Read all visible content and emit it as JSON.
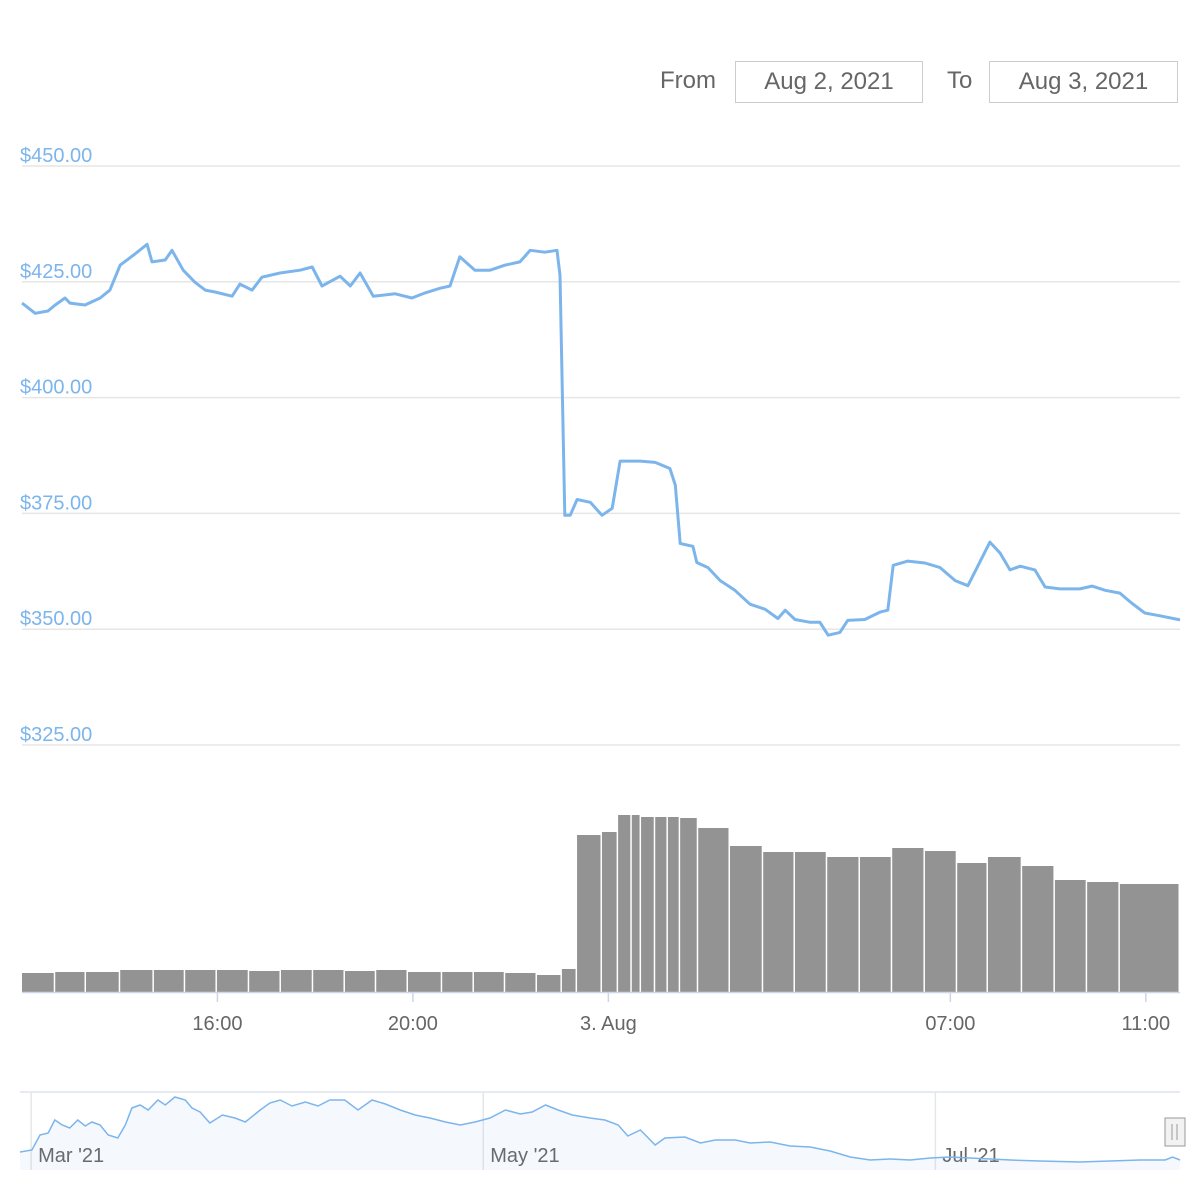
{
  "range_selector": {
    "from_label": "From",
    "from_value": "Aug 2, 2021",
    "to_label": "To",
    "to_value": "Aug 3, 2021"
  },
  "chart_data": [
    {
      "type": "line",
      "color": "#7cb5ec",
      "xlim": [
        12,
        35.7
      ],
      "ylim": [
        325,
        450
      ],
      "yticks": [
        {
          "value": 325,
          "label": "$325.00"
        },
        {
          "value": 350,
          "label": "$350.00"
        },
        {
          "value": 375,
          "label": "$375.00"
        },
        {
          "value": 400,
          "label": "$400.00"
        },
        {
          "value": 425,
          "label": "$425.00"
        },
        {
          "value": 450,
          "label": "$450.00"
        }
      ],
      "grid": true,
      "x": [
        12.0,
        12.27,
        12.53,
        12.68,
        12.88,
        12.98,
        13.29,
        13.6,
        13.8,
        14.01,
        14.31,
        14.56,
        14.66,
        14.93,
        15.07,
        15.3,
        15.54,
        15.75,
        15.95,
        16.3,
        16.46,
        16.71,
        16.91,
        17.28,
        17.69,
        17.94,
        18.14,
        18.51,
        18.72,
        18.92,
        19.19,
        19.64,
        19.98,
        20.25,
        20.55,
        20.76,
        20.96,
        21.27,
        21.58,
        21.89,
        22.19,
        22.4,
        22.7,
        22.95,
        23.01,
        23.11,
        23.22,
        23.36,
        23.63,
        23.87,
        24.08,
        24.24,
        24.65,
        24.96,
        25.26,
        25.37,
        25.47,
        25.73,
        25.81,
        26.04,
        26.29,
        26.59,
        26.9,
        27.21,
        27.47,
        27.62,
        27.82,
        28.13,
        28.33,
        28.5,
        28.74,
        28.9,
        29.25,
        29.56,
        29.72,
        29.83,
        30.13,
        30.48,
        30.79,
        31.1,
        31.36,
        31.57,
        31.81,
        32.02,
        32.22,
        32.43,
        32.73,
        32.94,
        33.24,
        33.65,
        33.9,
        34.17,
        34.47,
        34.68,
        34.98,
        35.29,
        35.7
      ],
      "values": [
        420.4,
        418.2,
        418.7,
        420,
        421.5,
        420.4,
        420,
        421.5,
        423.2,
        428.6,
        431,
        433.1,
        429.3,
        429.7,
        431.8,
        427.5,
        424.9,
        423.2,
        422.8,
        421.9,
        424.5,
        423.2,
        426,
        426.9,
        427.5,
        428.2,
        424.1,
        426.2,
        424.1,
        426.9,
        421.9,
        422.4,
        421.5,
        422.6,
        423.6,
        424.1,
        430.4,
        427.5,
        427.5,
        428.6,
        429.3,
        431.8,
        431.4,
        431.8,
        426.4,
        374.6,
        374.6,
        378,
        377.4,
        374.6,
        376.1,
        386.3,
        386.3,
        386,
        384.7,
        381.1,
        368.5,
        367.9,
        364.4,
        363.3,
        360.5,
        358.4,
        355.4,
        354.3,
        352.3,
        354.1,
        352.1,
        351.5,
        351.5,
        348.7,
        349.3,
        351.9,
        352.1,
        353.7,
        354.1,
        363.8,
        364.7,
        364.3,
        363.3,
        360.5,
        359.4,
        363.8,
        368.8,
        366.4,
        362.8,
        363.6,
        362.8,
        359.1,
        358.7,
        358.7,
        359.3,
        358.4,
        357.8,
        355.9,
        353.5,
        352.9,
        352
      ]
    },
    {
      "type": "column",
      "color": "#939393",
      "xlim": [
        12,
        35.7
      ],
      "xticks": [
        {
          "value": 16,
          "label": "16:00"
        },
        {
          "value": 20,
          "label": "20:00"
        },
        {
          "value": 24,
          "label": "3. Aug"
        },
        {
          "value": 31,
          "label": "07:00"
        },
        {
          "value": 35,
          "label": "11:00"
        }
      ],
      "x": [
        12.0,
        12.68,
        13.31,
        14.01,
        14.7,
        15.34,
        15.99,
        16.65,
        17.3,
        17.96,
        18.61,
        19.25,
        19.9,
        20.6,
        21.25,
        21.89,
        22.54,
        23.05,
        23.36,
        23.87,
        24.2,
        24.48,
        24.67,
        24.96,
        25.22,
        25.47,
        25.84,
        26.49,
        27.17,
        27.82,
        28.48,
        29.15,
        29.81,
        30.48,
        31.14,
        31.77,
        32.47,
        33.14,
        33.8,
        34.47
      ],
      "values": [
        19,
        20,
        20,
        22,
        22,
        22,
        22,
        21,
        22,
        22,
        21,
        22,
        20,
        20,
        20,
        19,
        17,
        23,
        157,
        160,
        177,
        177,
        175,
        175,
        175,
        174,
        164,
        146,
        140,
        140,
        135,
        135,
        144,
        141,
        129,
        135,
        126,
        112,
        110,
        108
      ]
    },
    {
      "type": "area",
      "color": "#7cb5ec",
      "xlim": [
        58.5,
        215
      ],
      "xticks": [
        {
          "value": 60,
          "label": "Mar '21"
        },
        {
          "value": 121,
          "label": "May '21"
        },
        {
          "value": 182,
          "label": "Jul '21"
        }
      ],
      "x": [
        58.5,
        60.1,
        61.2,
        62.3,
        63.2,
        64.2,
        65.2,
        66.3,
        67.3,
        68.2,
        69.3,
        70.4,
        71.7,
        72.7,
        73.6,
        74.7,
        75.8,
        77.1,
        78.1,
        79.4,
        80.8,
        81.7,
        82.8,
        84.1,
        85.8,
        87.5,
        88.9,
        90.9,
        92.2,
        93.6,
        95.2,
        97.0,
        98.7,
        100.3,
        102.3,
        104.1,
        106.0,
        107.8,
        109.8,
        111.8,
        113.8,
        115.9,
        117.9,
        119.9,
        121.9,
        124.0,
        126.0,
        127.6,
        129.4,
        131.1,
        133.0,
        135.4,
        137.4,
        139.2,
        140.5,
        142.2,
        144.2,
        145.5,
        148.2,
        150.3,
        152.3,
        155.0,
        157.0,
        159.7,
        162.4,
        165.1,
        167.8,
        170.5,
        173.2,
        175.9,
        178.6,
        181.3,
        184.0,
        186.7,
        189.4,
        192.1,
        196.1,
        201.5,
        205.6,
        209.6,
        213.0,
        214.0,
        215.0
      ],
      "values": [
        18,
        20,
        35,
        37,
        50,
        45,
        42,
        50,
        44,
        48,
        45,
        35,
        32,
        45,
        62,
        65,
        60,
        70,
        65,
        73,
        70,
        62,
        58,
        47,
        55,
        52,
        48,
        60,
        67,
        70,
        64,
        68,
        64,
        70,
        70,
        60,
        70,
        66,
        60,
        55,
        52,
        48,
        45,
        48,
        52,
        60,
        56,
        58,
        65,
        60,
        55,
        52,
        50,
        45,
        34,
        40,
        25,
        32,
        33,
        27,
        30,
        30,
        27,
        28,
        24,
        23,
        19,
        13,
        10,
        11,
        10,
        12,
        13,
        12,
        11,
        10,
        9,
        8,
        9,
        10,
        10,
        13,
        10
      ]
    }
  ]
}
